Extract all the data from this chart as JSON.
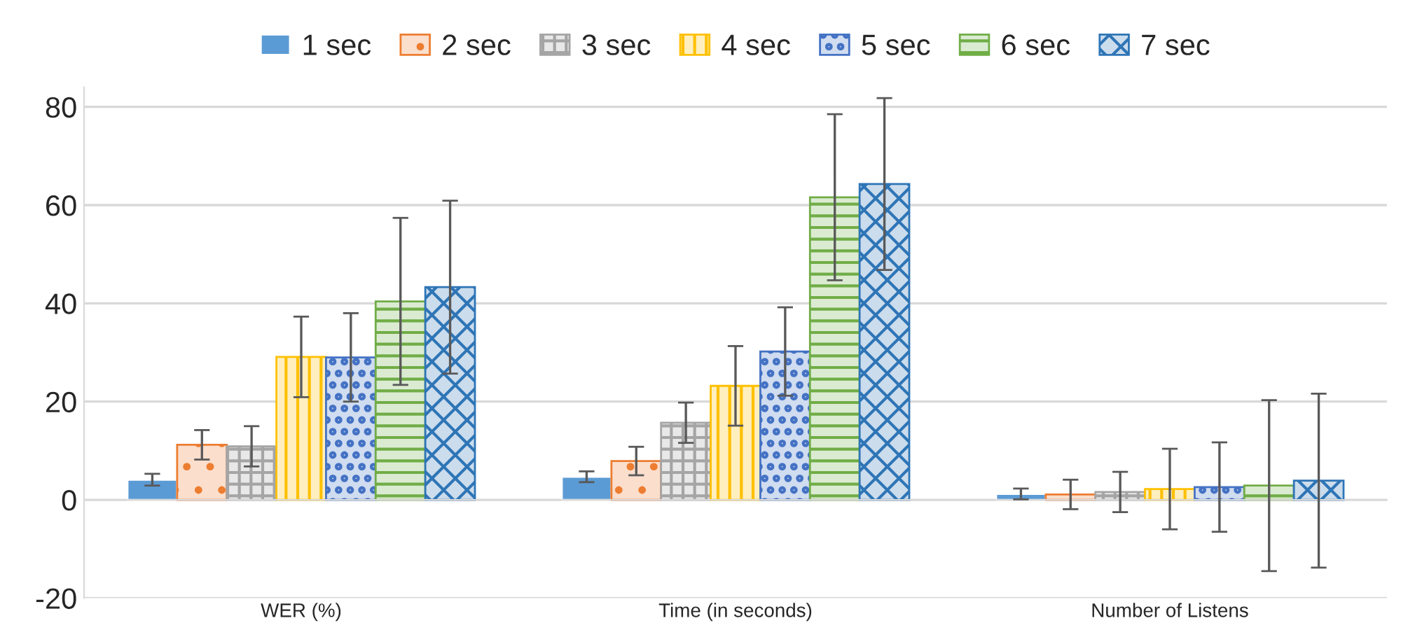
{
  "chart_data": {
    "type": "bar",
    "categories": [
      "WER (%)",
      "Time (in seconds)",
      "Number of Listens"
    ],
    "series": [
      {
        "name": "1 sec",
        "color": "#5b9bd5",
        "values": [
          4.1,
          4.7,
          1.2
        ],
        "errors": [
          1.2,
          1.1,
          1.1
        ]
      },
      {
        "name": "2 sec",
        "color": "#ed7d31",
        "values": [
          11.2,
          7.9,
          1.1
        ],
        "errors": [
          3.0,
          2.9,
          3.0
        ]
      },
      {
        "name": "3 sec",
        "color": "#a5a5a5",
        "values": [
          10.9,
          15.7,
          1.6
        ],
        "errors": [
          4.1,
          4.1,
          4.1
        ]
      },
      {
        "name": "4 sec",
        "color": "#ffc000",
        "values": [
          29.1,
          23.2,
          2.2
        ],
        "errors": [
          8.2,
          8.1,
          8.2
        ]
      },
      {
        "name": "5 sec",
        "color": "#4472c4",
        "values": [
          29.0,
          30.2,
          2.6
        ],
        "errors": [
          9.0,
          9.0,
          9.1
        ]
      },
      {
        "name": "6 sec",
        "color": "#70ad47",
        "values": [
          40.4,
          61.6,
          2.9
        ],
        "errors": [
          17.0,
          16.9,
          17.4
        ]
      },
      {
        "name": "7 sec",
        "color": "#2e75b6",
        "values": [
          43.3,
          64.3,
          3.9
        ],
        "errors": [
          17.6,
          17.5,
          17.7
        ]
      }
    ],
    "ylim": [
      -20,
      84
    ],
    "yticks": [
      -20,
      0,
      20,
      40,
      60,
      80
    ],
    "grid": "y",
    "legend": "top"
  }
}
